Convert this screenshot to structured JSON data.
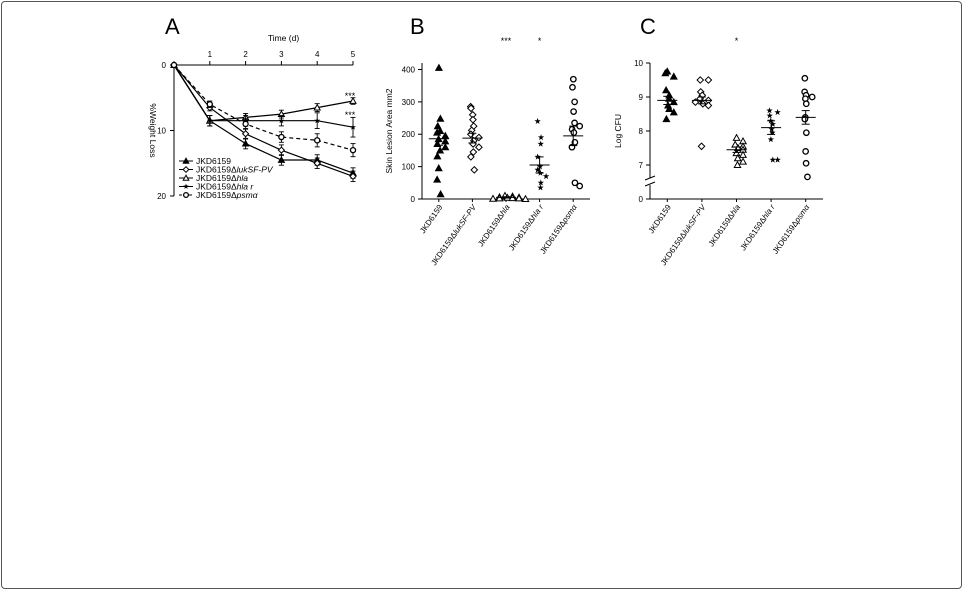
{
  "panels": {
    "a": "A",
    "b": "B",
    "c": "C"
  },
  "chart_data": [
    {
      "type": "line",
      "panel": "A",
      "xlabel": "Time (d)",
      "ylabel": "%Weight Loss",
      "x": [
        0,
        1,
        2,
        3,
        4,
        5
      ],
      "xticks": [
        "1",
        "2",
        "3",
        "4",
        "5"
      ],
      "yticks": [
        "0",
        "10",
        "20"
      ],
      "xlim": [
        0,
        5
      ],
      "ylim": [
        0,
        20
      ],
      "series": [
        {
          "name": "JKD6159",
          "name_base": "JKD6159",
          "name_italic": "",
          "marker": "triangle-filled",
          "style": "solid",
          "values": [
            0,
            8.5,
            12,
            14.5,
            14.5,
            16.5
          ],
          "errors": [
            0,
            0.8,
            0.8,
            0.8,
            0.8,
            0.8
          ]
        },
        {
          "name": "JKD6159ΔlukSF-PV",
          "name_base": "JKD6159Δ",
          "name_italic": "lukSF-PV",
          "marker": "diamond-open",
          "style": "solid",
          "values": [
            0,
            6.5,
            10.5,
            13,
            15,
            17
          ],
          "errors": [
            0,
            0.5,
            0.8,
            0.8,
            0.8,
            0.8
          ]
        },
        {
          "name": "JKD6159Δhla",
          "name_base": "JKD6159Δ",
          "name_italic": "hla",
          "marker": "triangle-open",
          "style": "solid",
          "values": [
            0,
            8.5,
            8,
            7.5,
            6.5,
            5.5
          ],
          "errors": [
            0,
            0.8,
            0.6,
            0.6,
            0.6,
            0.5
          ]
        },
        {
          "name": "JKD6159Δhla r",
          "name_base": "JKD6159Δ",
          "name_italic": "hla r",
          "marker": "star",
          "style": "solid",
          "values": [
            0,
            8.5,
            8.5,
            8.5,
            8.5,
            9.5
          ],
          "errors": [
            0,
            0.8,
            0.8,
            0.8,
            1.2,
            1.5
          ]
        },
        {
          "name": "JKD6159Δpsmα",
          "name_base": "JKD6159Δ",
          "name_italic": "psmα",
          "marker": "circle-open",
          "style": "dashed",
          "values": [
            0,
            6,
            9,
            11,
            11.5,
            13
          ],
          "errors": [
            0,
            0.5,
            0.8,
            0.8,
            1,
            1
          ]
        }
      ],
      "annotations": [
        "***",
        "***"
      ]
    },
    {
      "type": "scatter",
      "panel": "B",
      "ylabel": "Skin Lesion Area mm2",
      "yticks": [
        "0",
        "100",
        "200",
        "300",
        "400"
      ],
      "ylim": [
        0,
        420
      ],
      "categories": [
        "JKD6159",
        "JKD6159ΔlukSF-PV",
        "JKD6159Δhla",
        "JKD6159Δhla r",
        "JKD6159Δpsmα"
      ],
      "significance": [
        "",
        "",
        "***",
        "*",
        ""
      ],
      "groups": [
        {
          "marker": "triangle-filled",
          "mean": 186,
          "sem": 20,
          "values": [
            405,
            248,
            225,
            210,
            205,
            195,
            185,
            178,
            170,
            160,
            150,
            132,
            95,
            60,
            15
          ]
        },
        {
          "marker": "diamond-open",
          "mean": 188,
          "sem": 15,
          "values": [
            285,
            280,
            260,
            245,
            225,
            212,
            200,
            190,
            180,
            170,
            160,
            145,
            130,
            90
          ]
        },
        {
          "marker": "triangle-open",
          "mean": 5,
          "sem": 2,
          "values": [
            10,
            8,
            6,
            5,
            4,
            3,
            2,
            2,
            1,
            0
          ]
        },
        {
          "marker": "star",
          "mean": 105,
          "sem": 25,
          "values": [
            240,
            190,
            170,
            130,
            100,
            90,
            80,
            70,
            50,
            35
          ]
        },
        {
          "marker": "circle-open",
          "mean": 195,
          "sem": 30,
          "values": [
            370,
            345,
            300,
            270,
            235,
            225,
            215,
            205,
            175,
            160,
            50,
            40
          ]
        }
      ]
    },
    {
      "type": "scatter",
      "panel": "C",
      "ylabel": "Log CFU",
      "yticks": [
        "0",
        "7",
        "8",
        "9",
        "10"
      ],
      "ylim": [
        6.5,
        10
      ],
      "axis_break": true,
      "categories": [
        "JKD6159",
        "JKD6159ΔlukSF-PV",
        "JKD6159Δhla",
        "JKD6159Δhla r",
        "JKD6159Δpsmα"
      ],
      "significance": [
        "",
        "",
        "*",
        "",
        ""
      ],
      "groups": [
        {
          "marker": "triangle-filled",
          "mean": 8.9,
          "sem": 0.12,
          "values": [
            9.75,
            9.7,
            9.6,
            9.2,
            9.05,
            8.95,
            8.85,
            8.75,
            8.65,
            8.55,
            8.35
          ]
        },
        {
          "marker": "diamond-open",
          "mean": 8.9,
          "sem": 0.1,
          "values": [
            9.5,
            9.5,
            9.15,
            9.05,
            8.95,
            8.9,
            8.85,
            8.8,
            8.75,
            7.55
          ]
        },
        {
          "marker": "triangle-open",
          "mean": 7.45,
          "sem": 0.08,
          "values": [
            7.8,
            7.7,
            7.6,
            7.55,
            7.5,
            7.45,
            7.35,
            7.3,
            7.2,
            7.1,
            7.0
          ]
        },
        {
          "marker": "star",
          "mean": 8.1,
          "sem": 0.2,
          "values": [
            8.6,
            8.55,
            8.45,
            8.3,
            8.2,
            8.05,
            7.95,
            7.75,
            7.15,
            7.15
          ]
        },
        {
          "marker": "circle-open",
          "mean": 8.4,
          "sem": 0.2,
          "values": [
            9.55,
            9.15,
            9.05,
            9.0,
            8.95,
            8.8,
            8.4,
            8.35,
            7.95,
            7.4,
            7.05,
            6.65
          ]
        }
      ]
    }
  ]
}
